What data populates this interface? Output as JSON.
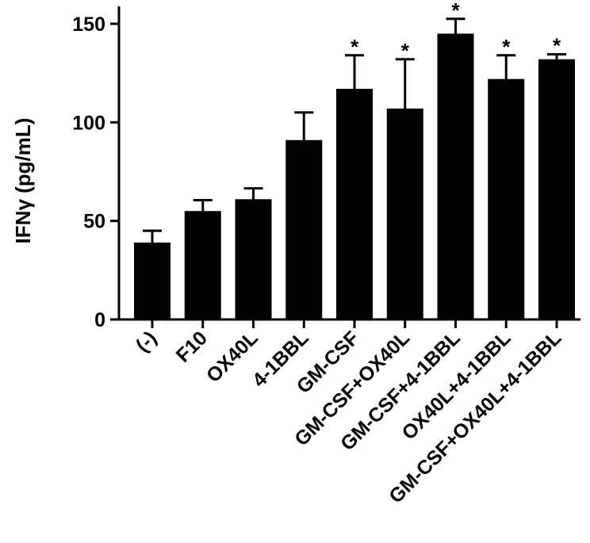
{
  "chart_data": {
    "type": "bar",
    "title": "",
    "xlabel": "",
    "ylabel": "IFNγ (pg/mL)",
    "ylim": [
      0,
      160
    ],
    "yticks": [
      0,
      50,
      100,
      150
    ],
    "categories": [
      "(-)",
      "F10",
      "OX40L",
      "4-1BBL",
      "GM-CSF",
      "GM-CSF+OX40L",
      "GM-CSF+4-1BBL",
      "OX40L+4-1BBL",
      "GM-CSF+OX40L+4-1BBL"
    ],
    "values": [
      39,
      55,
      61,
      91,
      117,
      107,
      145,
      122,
      132
    ],
    "errors": [
      6,
      5.5,
      5.5,
      14,
      17,
      25,
      7.5,
      12,
      2.5
    ],
    "significance": [
      "",
      "",
      "",
      "",
      "*",
      "*",
      "*",
      "*",
      "*"
    ],
    "bar_color": "#000000",
    "grid": false,
    "legend": "none"
  }
}
